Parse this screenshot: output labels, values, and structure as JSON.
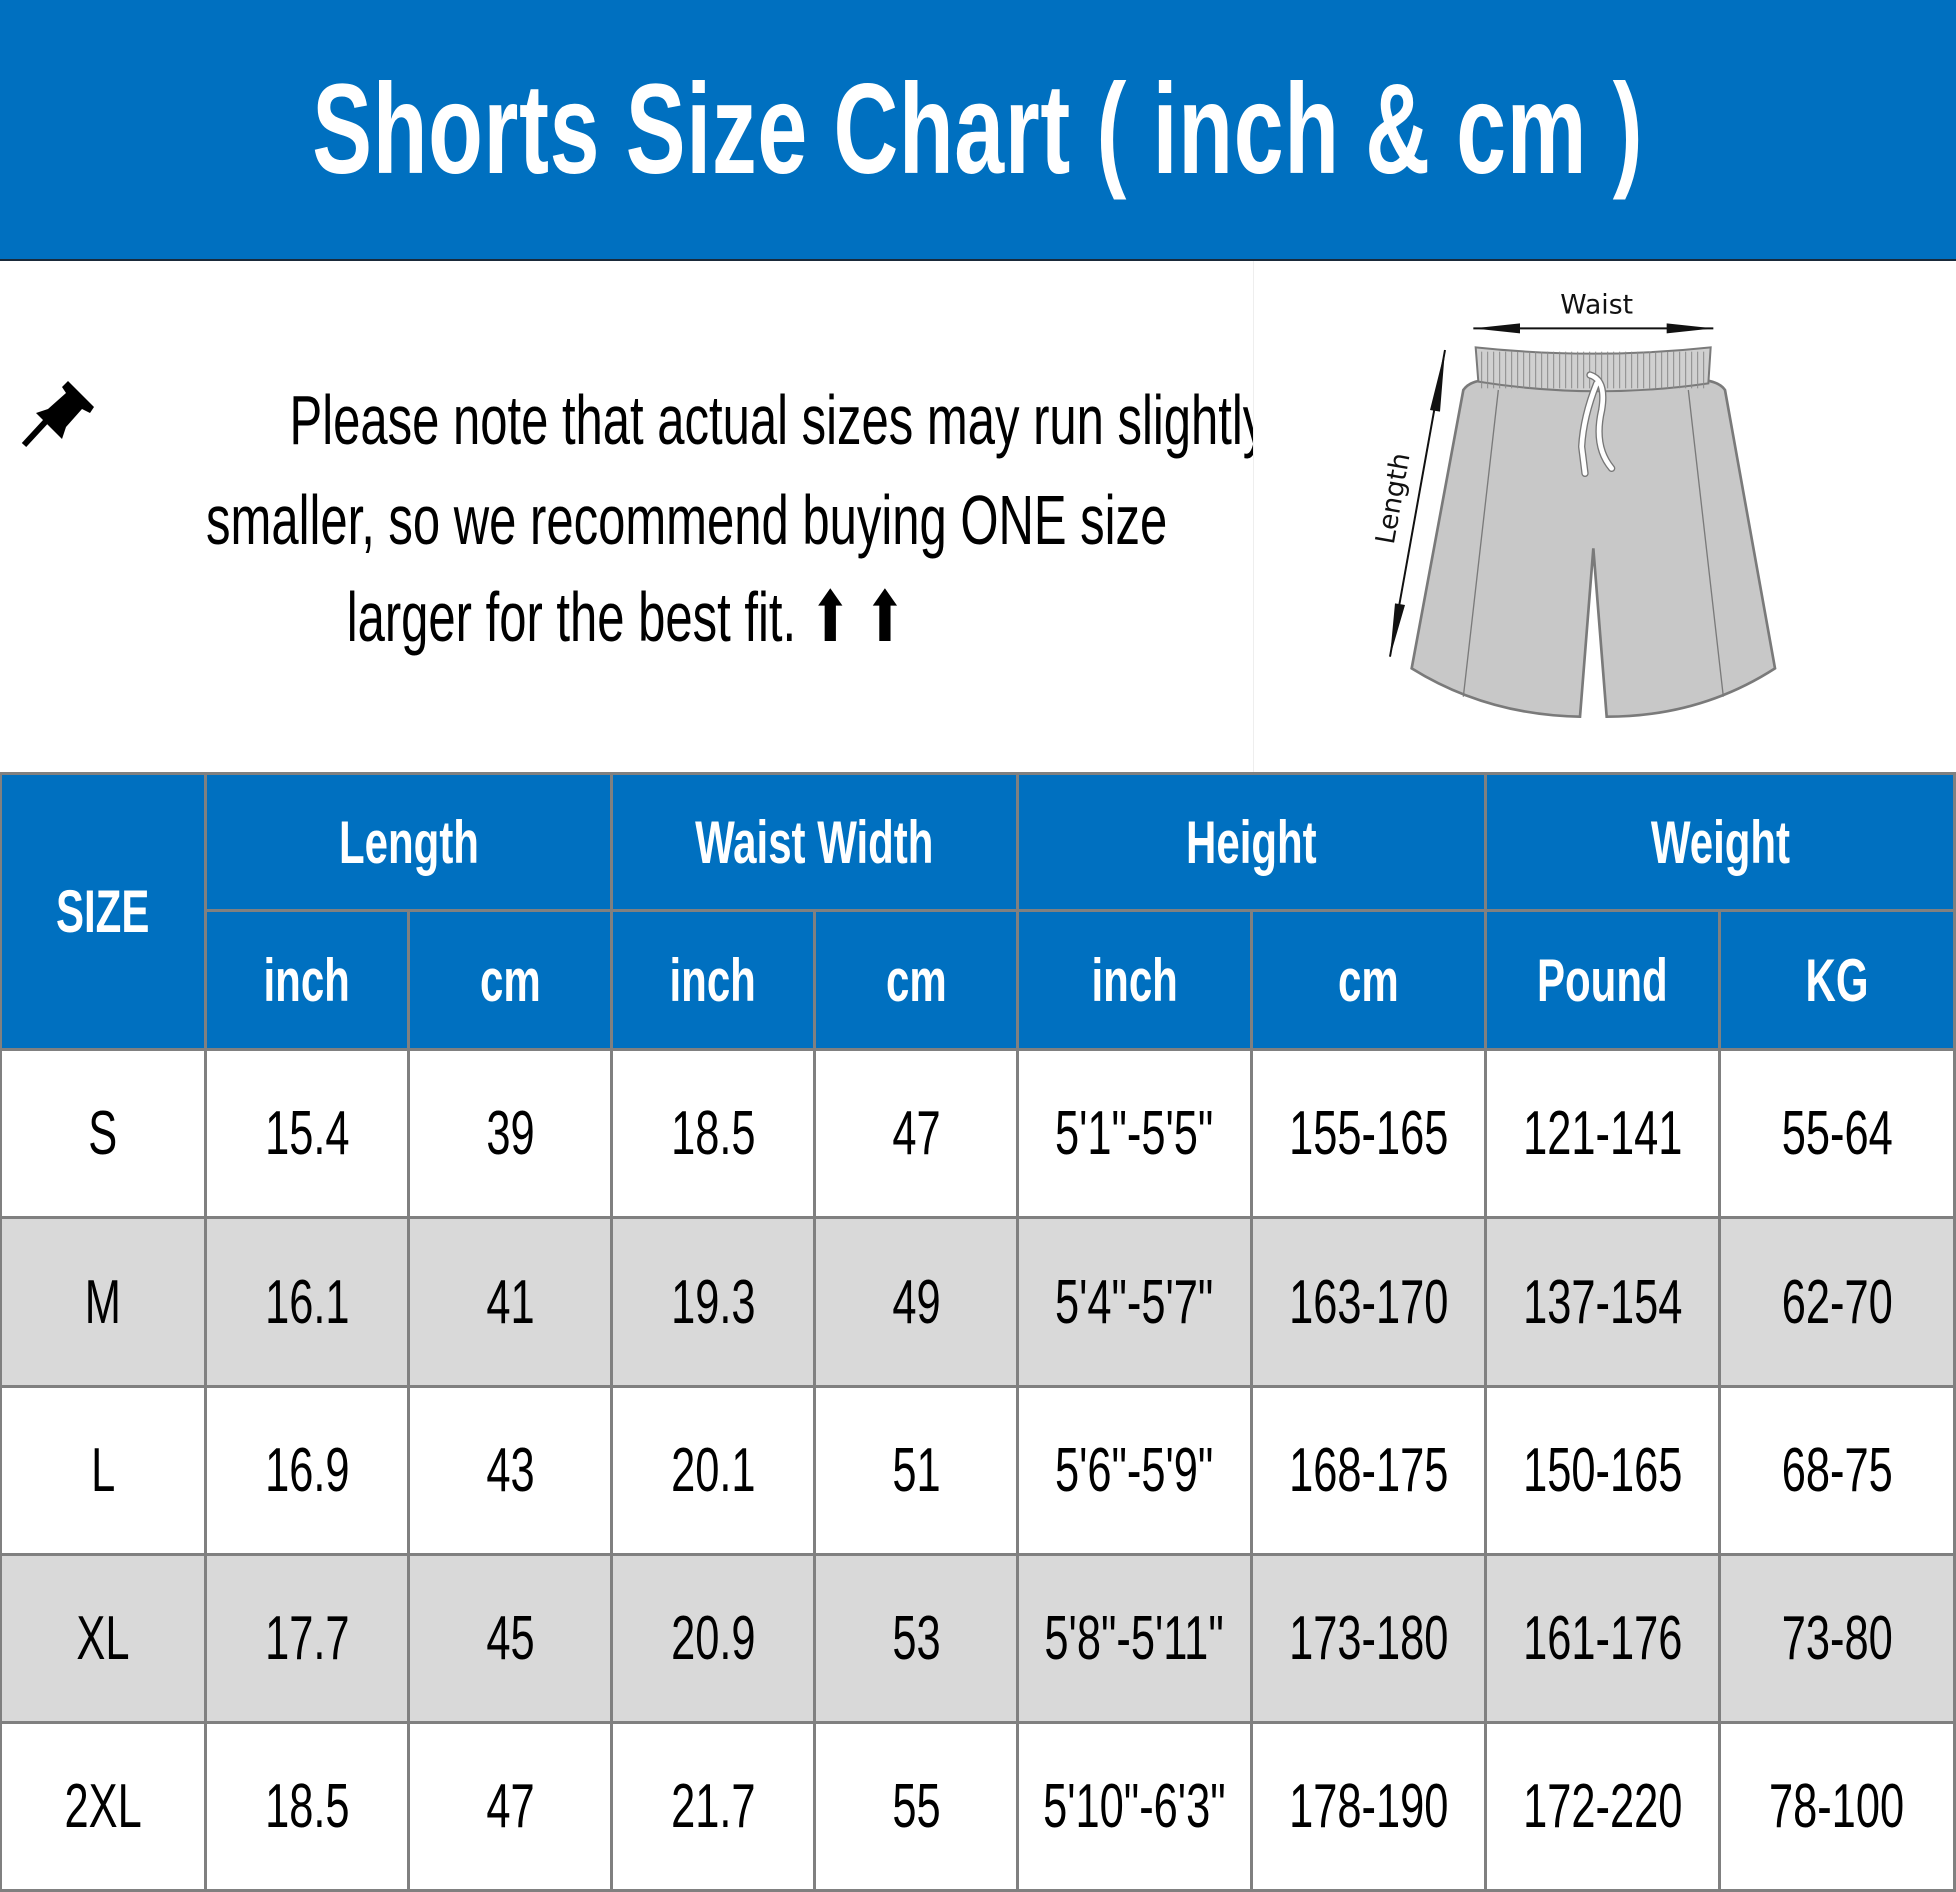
{
  "title": "Shorts Size Chart ( inch & cm )",
  "note": {
    "icon": "pushpin-icon",
    "lines": [
      "Please note that actual sizes may run slightly",
      "smaller, so we recommend buying ONE size",
      "larger for the best fit. ⬆ ⬆"
    ]
  },
  "illustration": {
    "waist_label": "Waist",
    "length_label": "Length"
  },
  "table": {
    "size_header": "SIZE",
    "groups": [
      "Length",
      "Waist Width",
      "Height",
      "Weight"
    ],
    "subheaders": [
      "inch",
      "cm",
      "inch",
      "cm",
      "inch",
      "cm",
      "Pound",
      "KG"
    ],
    "rows": [
      [
        "S",
        "15.4",
        "39",
        "18.5",
        "47",
        "5'1\"-5'5\"",
        "155-165",
        "121-141",
        "55-64"
      ],
      [
        "M",
        "16.1",
        "41",
        "19.3",
        "49",
        "5'4\"-5'7\"",
        "163-170",
        "137-154",
        "62-70"
      ],
      [
        "L",
        "16.9",
        "43",
        "20.1",
        "51",
        "5'6\"-5'9\"",
        "168-175",
        "150-165",
        "68-75"
      ],
      [
        "XL",
        "17.7",
        "45",
        "20.9",
        "53",
        "5'8\"-5'11\"",
        "173-180",
        "161-176",
        "73-80"
      ],
      [
        "2XL",
        "18.5",
        "47",
        "21.7",
        "55",
        "5'10\"-6'3\"",
        "178-190",
        "172-220",
        "78-100"
      ]
    ]
  },
  "colors": {
    "header_blue": "#0070c0",
    "stripe_grey": "#d9d9d9",
    "grid": "#808080"
  }
}
